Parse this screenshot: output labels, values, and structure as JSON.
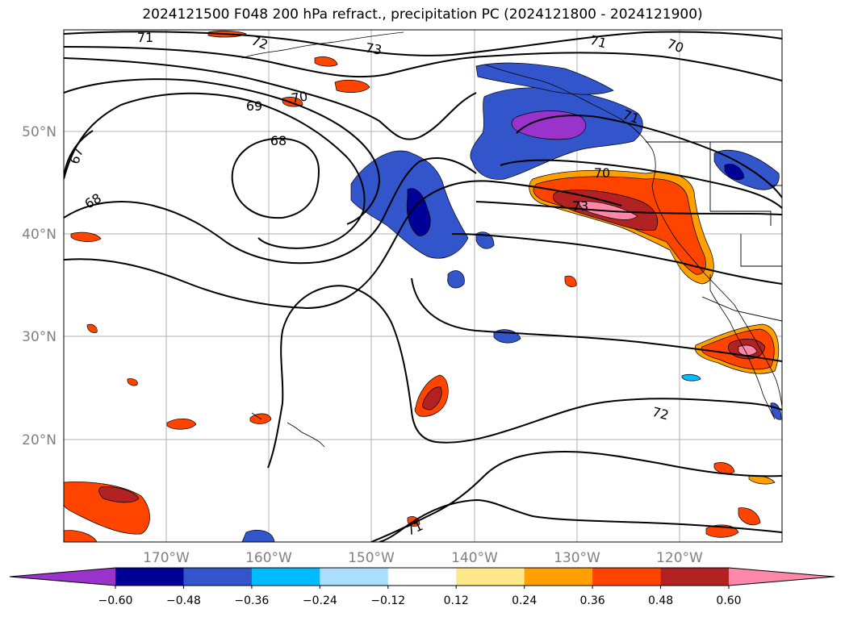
{
  "title": "2024121500 F048 200 hPa refract., precipitation PC (2024121800 - 2024121900)",
  "lat_labels": [
    "50°N",
    "40°N",
    "30°N",
    "20°N"
  ],
  "lon_labels": [
    "170°W",
    "160°W",
    "150°W",
    "140°W",
    "130°W",
    "120°W"
  ],
  "contour_labels": [
    "71",
    "72",
    "73",
    "70",
    "69",
    "68",
    "67",
    "68",
    "71",
    "70",
    "71",
    "70",
    "73",
    "72",
    "71"
  ],
  "colorbar": {
    "ticks": [
      "−0.60",
      "−0.48",
      "−0.36",
      "−0.24",
      "−0.12",
      "0.12",
      "0.24",
      "0.36",
      "0.48",
      "0.60"
    ],
    "colors": [
      "#9933cc",
      "#000099",
      "#3355cc",
      "#00bbff",
      "#aaddff",
      "#ffffff",
      "#ffe88a",
      "#ffa000",
      "#ff4400",
      "#b22222",
      "#ff88aa"
    ]
  }
}
